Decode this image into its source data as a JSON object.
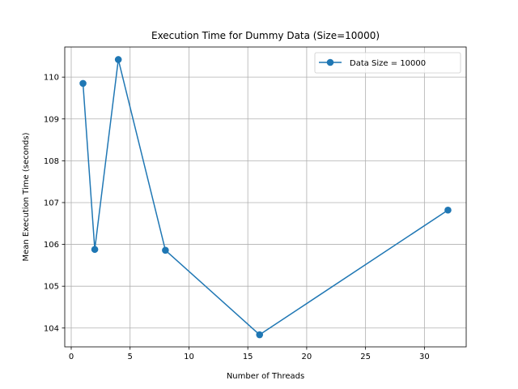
{
  "chart_data": {
    "type": "line",
    "title": "Execution Time for Dummy Data (Size=10000)",
    "xlabel": "Number of Threads",
    "ylabel": "Mean Execution Time (seconds)",
    "xlim": [
      -0.55,
      33.55
    ],
    "ylim": [
      103.55,
      110.72
    ],
    "xticks": [
      0,
      5,
      10,
      15,
      20,
      25,
      30
    ],
    "yticks": [
      104,
      105,
      106,
      107,
      108,
      109,
      110
    ],
    "grid": true,
    "legend_position": "top-right",
    "series": [
      {
        "name": "Data Size = 10000",
        "color": "#1f77b4",
        "marker": "circle",
        "x": [
          1,
          2,
          4,
          8,
          16,
          32
        ],
        "y": [
          109.85,
          105.88,
          110.42,
          105.86,
          103.84,
          106.82
        ]
      }
    ]
  }
}
